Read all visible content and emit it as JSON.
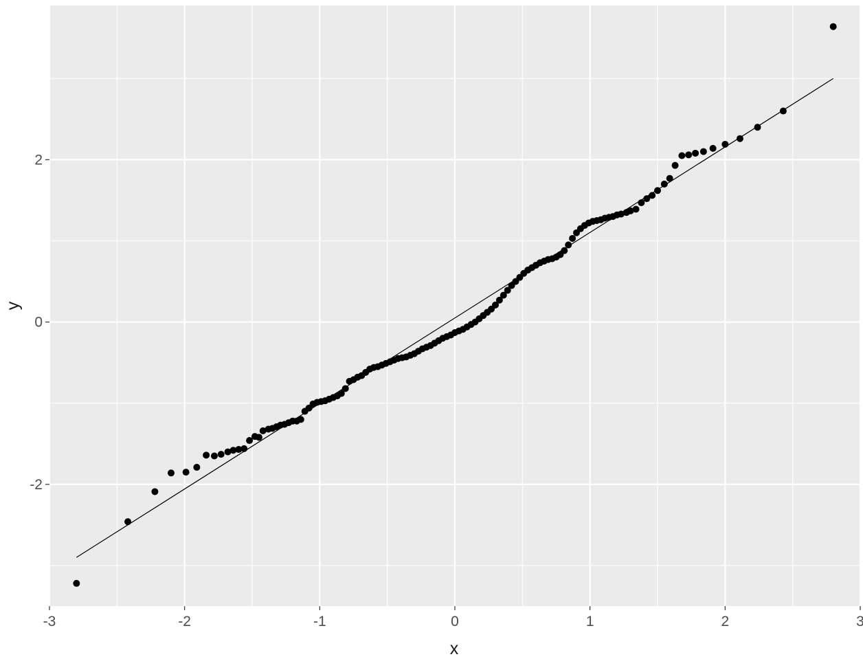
{
  "chart_data": {
    "type": "scatter",
    "title": "",
    "xlabel": "x",
    "ylabel": "y",
    "xlim": [
      -3.0,
      3.0
    ],
    "ylim": [
      -3.5,
      3.9
    ],
    "grid": true,
    "x_ticks": [
      "-3",
      "-2",
      "-1",
      "0",
      "1",
      "2",
      "3"
    ],
    "y_ticks": [
      "-2",
      "0",
      "2"
    ],
    "reference_line": {
      "x": [
        -2.8,
        2.8
      ],
      "y": [
        -2.9,
        3.0
      ]
    },
    "points": [
      [
        -2.8,
        -3.22
      ],
      [
        -2.42,
        -2.46
      ],
      [
        -2.22,
        -2.09
      ],
      [
        -2.1,
        -1.86
      ],
      [
        -1.99,
        -1.85
      ],
      [
        -1.91,
        -1.79
      ],
      [
        -1.84,
        -1.64
      ],
      [
        -1.78,
        -1.65
      ],
      [
        -1.73,
        -1.63
      ],
      [
        -1.68,
        -1.6
      ],
      [
        -1.64,
        -1.58
      ],
      [
        -1.6,
        -1.57
      ],
      [
        -1.56,
        -1.56
      ],
      [
        -1.52,
        -1.46
      ],
      [
        -1.48,
        -1.41
      ],
      [
        -1.45,
        -1.42
      ],
      [
        -1.42,
        -1.34
      ],
      [
        -1.38,
        -1.32
      ],
      [
        -1.35,
        -1.31
      ],
      [
        -1.32,
        -1.29
      ],
      [
        -1.29,
        -1.27
      ],
      [
        -1.26,
        -1.26
      ],
      [
        -1.23,
        -1.24
      ],
      [
        -1.2,
        -1.22
      ],
      [
        -1.17,
        -1.22
      ],
      [
        -1.14,
        -1.2
      ],
      [
        -1.11,
        -1.1
      ],
      [
        -1.08,
        -1.06
      ],
      [
        -1.05,
        -1.01
      ],
      [
        -1.02,
        -0.99
      ],
      [
        -0.99,
        -0.98
      ],
      [
        -0.96,
        -0.97
      ],
      [
        -0.93,
        -0.95
      ],
      [
        -0.9,
        -0.93
      ],
      [
        -0.87,
        -0.91
      ],
      [
        -0.84,
        -0.88
      ],
      [
        -0.81,
        -0.82
      ],
      [
        -0.78,
        -0.73
      ],
      [
        -0.75,
        -0.71
      ],
      [
        -0.72,
        -0.68
      ],
      [
        -0.69,
        -0.66
      ],
      [
        -0.66,
        -0.62
      ],
      [
        -0.63,
        -0.58
      ],
      [
        -0.6,
        -0.56
      ],
      [
        -0.57,
        -0.55
      ],
      [
        -0.54,
        -0.53
      ],
      [
        -0.51,
        -0.51
      ],
      [
        -0.48,
        -0.49
      ],
      [
        -0.45,
        -0.47
      ],
      [
        -0.42,
        -0.45
      ],
      [
        -0.39,
        -0.44
      ],
      [
        -0.36,
        -0.43
      ],
      [
        -0.33,
        -0.41
      ],
      [
        -0.3,
        -0.39
      ],
      [
        -0.27,
        -0.36
      ],
      [
        -0.24,
        -0.33
      ],
      [
        -0.21,
        -0.31
      ],
      [
        -0.18,
        -0.29
      ],
      [
        -0.15,
        -0.26
      ],
      [
        -0.12,
        -0.23
      ],
      [
        -0.09,
        -0.2
      ],
      [
        -0.06,
        -0.18
      ],
      [
        -0.03,
        -0.16
      ],
      [
        0.0,
        -0.13
      ],
      [
        0.03,
        -0.11
      ],
      [
        0.06,
        -0.09
      ],
      [
        0.09,
        -0.06
      ],
      [
        0.12,
        -0.03
      ],
      [
        0.15,
        0.0
      ],
      [
        0.18,
        0.04
      ],
      [
        0.21,
        0.08
      ],
      [
        0.24,
        0.12
      ],
      [
        0.27,
        0.16
      ],
      [
        0.3,
        0.21
      ],
      [
        0.33,
        0.27
      ],
      [
        0.36,
        0.33
      ],
      [
        0.39,
        0.39
      ],
      [
        0.42,
        0.45
      ],
      [
        0.45,
        0.5
      ],
      [
        0.48,
        0.55
      ],
      [
        0.51,
        0.6
      ],
      [
        0.54,
        0.64
      ],
      [
        0.57,
        0.67
      ],
      [
        0.6,
        0.7
      ],
      [
        0.63,
        0.73
      ],
      [
        0.66,
        0.75
      ],
      [
        0.69,
        0.77
      ],
      [
        0.72,
        0.78
      ],
      [
        0.75,
        0.8
      ],
      [
        0.78,
        0.83
      ],
      [
        0.81,
        0.88
      ],
      [
        0.84,
        0.95
      ],
      [
        0.87,
        1.03
      ],
      [
        0.9,
        1.1
      ],
      [
        0.93,
        1.15
      ],
      [
        0.96,
        1.19
      ],
      [
        0.99,
        1.22
      ],
      [
        1.02,
        1.24
      ],
      [
        1.05,
        1.25
      ],
      [
        1.08,
        1.26
      ],
      [
        1.11,
        1.28
      ],
      [
        1.14,
        1.29
      ],
      [
        1.17,
        1.3
      ],
      [
        1.2,
        1.32
      ],
      [
        1.23,
        1.33
      ],
      [
        1.27,
        1.35
      ],
      [
        1.3,
        1.37
      ],
      [
        1.34,
        1.39
      ],
      [
        1.38,
        1.47
      ],
      [
        1.42,
        1.52
      ],
      [
        1.46,
        1.56
      ],
      [
        1.5,
        1.62
      ],
      [
        1.55,
        1.7
      ],
      [
        1.59,
        1.77
      ],
      [
        1.63,
        1.93
      ],
      [
        1.68,
        2.05
      ],
      [
        1.73,
        2.06
      ],
      [
        1.78,
        2.08
      ],
      [
        1.84,
        2.1
      ],
      [
        1.91,
        2.14
      ],
      [
        2.0,
        2.19
      ],
      [
        2.11,
        2.26
      ],
      [
        2.24,
        2.4
      ],
      [
        2.43,
        2.6
      ],
      [
        2.8,
        3.64
      ]
    ]
  }
}
